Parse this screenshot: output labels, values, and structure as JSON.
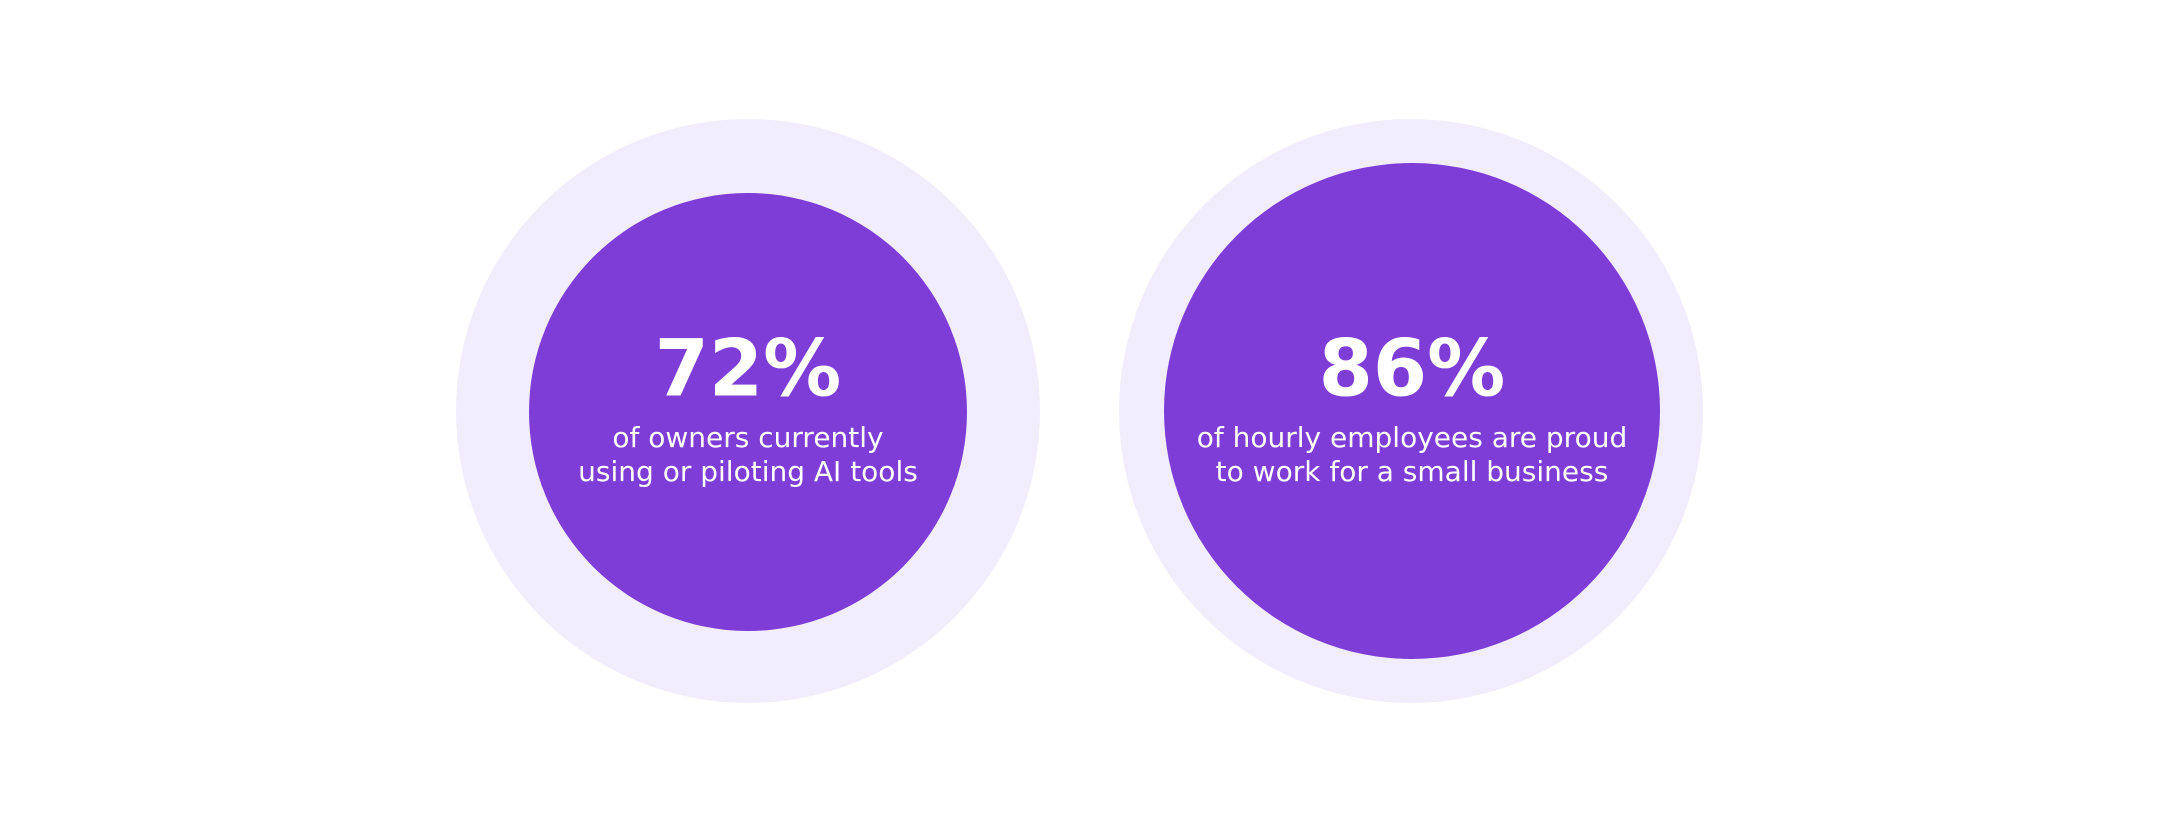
{
  "stats": [
    {
      "value": "72%",
      "lines": [
        "of owners currently",
        "using or piloting AI tools"
      ]
    },
    {
      "value": "86%",
      "lines": [
        "of hourly employees are proud",
        "to work for a small business"
      ]
    }
  ]
}
